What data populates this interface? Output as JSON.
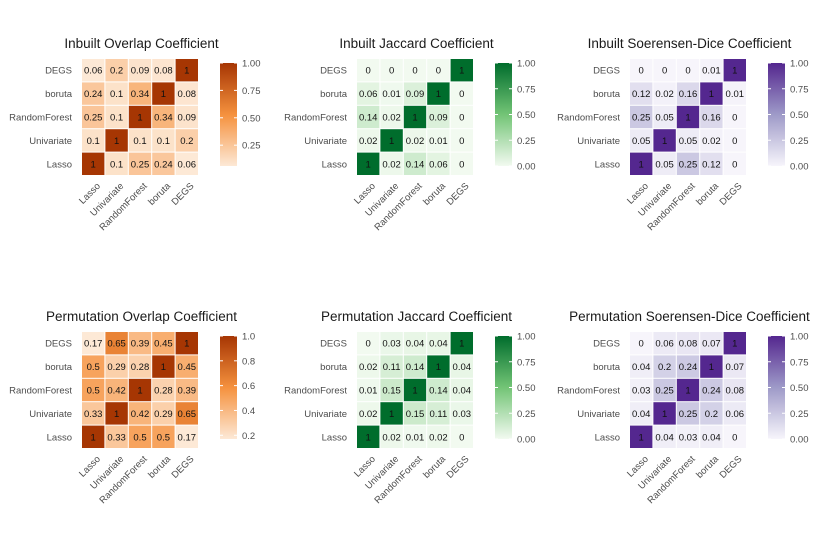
{
  "chart_data": [
    {
      "type": "heatmap",
      "title": "Inbuilt Overlap Coefficient",
      "x_categories": [
        "Lasso",
        "Univariate",
        "RandomForest",
        "boruta",
        "DEGS"
      ],
      "y_categories": [
        "DEGS",
        "boruta",
        "RandomForest",
        "Univariate",
        "Lasso"
      ],
      "values": [
        [
          "0.06",
          "0.2",
          "0.09",
          "0.08",
          "1"
        ],
        [
          "0.24",
          "0.1",
          "0.34",
          "1",
          "0.08"
        ],
        [
          "0.25",
          "0.1",
          "1",
          "0.34",
          "0.09"
        ],
        [
          "0.1",
          "1",
          "0.1",
          "0.1",
          "0.2"
        ],
        [
          "1",
          "0.1",
          "0.25",
          "0.24",
          "0.06"
        ]
      ],
      "legend": {
        "ticks": [
          "1.00",
          "0.75",
          "0.50",
          "0.25"
        ],
        "tick_values": [
          1.0,
          0.75,
          0.5,
          0.25
        ],
        "min": 0.06,
        "max": 1.0
      },
      "colors": {
        "low": "#fde9d6",
        "mid": "#f5913e",
        "high": "#a63603"
      }
    },
    {
      "type": "heatmap",
      "title": "Inbuilt Jaccard Coefficient",
      "x_categories": [
        "Lasso",
        "Univariate",
        "RandomForest",
        "boruta",
        "DEGS"
      ],
      "y_categories": [
        "DEGS",
        "boruta",
        "RandomForest",
        "Univariate",
        "Lasso"
      ],
      "values": [
        [
          "0",
          "0",
          "0",
          "0",
          "1"
        ],
        [
          "0.06",
          "0.01",
          "0.09",
          "1",
          "0"
        ],
        [
          "0.14",
          "0.02",
          "1",
          "0.09",
          "0"
        ],
        [
          "0.02",
          "1",
          "0.02",
          "0.01",
          "0"
        ],
        [
          "1",
          "0.02",
          "0.14",
          "0.06",
          "0"
        ]
      ],
      "legend": {
        "ticks": [
          "1.00",
          "0.75",
          "0.50",
          "0.25",
          "0.00"
        ],
        "tick_values": [
          1.0,
          0.75,
          0.5,
          0.25,
          0.0
        ],
        "min": 0.0,
        "max": 1.0
      },
      "colors": {
        "low": "#f2faf0",
        "mid": "#73c476",
        "high": "#006d2c"
      }
    },
    {
      "type": "heatmap",
      "title": "Inbuilt Soerensen-Dice Coefficient",
      "x_categories": [
        "Lasso",
        "Univariate",
        "RandomForest",
        "boruta",
        "DEGS"
      ],
      "y_categories": [
        "DEGS",
        "boruta",
        "RandomForest",
        "Univariate",
        "Lasso"
      ],
      "values": [
        [
          "0",
          "0",
          "0",
          "0.01",
          "1"
        ],
        [
          "0.12",
          "0.02",
          "0.16",
          "1",
          "0.01"
        ],
        [
          "0.25",
          "0.05",
          "1",
          "0.16",
          "0"
        ],
        [
          "0.05",
          "1",
          "0.05",
          "0.02",
          "0"
        ],
        [
          "1",
          "0.05",
          "0.25",
          "0.12",
          "0"
        ]
      ],
      "legend": {
        "ticks": [
          "1.00",
          "0.75",
          "0.50",
          "0.25",
          "0.00"
        ],
        "tick_values": [
          1.0,
          0.75,
          0.5,
          0.25,
          0.0
        ],
        "min": 0.0,
        "max": 1.0
      },
      "colors": {
        "low": "#f7f5fb",
        "mid": "#9e9ac8",
        "high": "#54278f"
      }
    },
    {
      "type": "heatmap",
      "title": "Permutation Overlap Coefficient",
      "x_categories": [
        "Lasso",
        "Univariate",
        "RandomForest",
        "boruta",
        "DEGS"
      ],
      "y_categories": [
        "DEGS",
        "boruta",
        "RandomForest",
        "Univariate",
        "Lasso"
      ],
      "values": [
        [
          "0.17",
          "0.65",
          "0.39",
          "0.45",
          "1"
        ],
        [
          "0.5",
          "0.29",
          "0.28",
          "1",
          "0.45"
        ],
        [
          "0.5",
          "0.42",
          "1",
          "0.28",
          "0.39"
        ],
        [
          "0.33",
          "1",
          "0.42",
          "0.29",
          "0.65"
        ],
        [
          "1",
          "0.33",
          "0.5",
          "0.5",
          "0.17"
        ]
      ],
      "legend": {
        "ticks": [
          "1.0",
          "0.8",
          "0.6",
          "0.4",
          "0.2"
        ],
        "tick_values": [
          1.0,
          0.8,
          0.6,
          0.4,
          0.2
        ],
        "min": 0.17,
        "max": 1.0
      },
      "colors": {
        "low": "#fde9d6",
        "mid": "#f5913e",
        "high": "#a63603"
      }
    },
    {
      "type": "heatmap",
      "title": "Permutation Jaccard Coefficient",
      "x_categories": [
        "Lasso",
        "Univariate",
        "RandomForest",
        "boruta",
        "DEGS"
      ],
      "y_categories": [
        "DEGS",
        "boruta",
        "RandomForest",
        "Univariate",
        "Lasso"
      ],
      "values": [
        [
          "0",
          "0.03",
          "0.04",
          "0.04",
          "1"
        ],
        [
          "0.02",
          "0.11",
          "0.14",
          "1",
          "0.04"
        ],
        [
          "0.01",
          "0.15",
          "1",
          "0.14",
          "0.04"
        ],
        [
          "0.02",
          "1",
          "0.15",
          "0.11",
          "0.03"
        ],
        [
          "1",
          "0.02",
          "0.01",
          "0.02",
          "0"
        ]
      ],
      "legend": {
        "ticks": [
          "1.00",
          "0.75",
          "0.50",
          "0.25",
          "0.00"
        ],
        "tick_values": [
          1.0,
          0.75,
          0.5,
          0.25,
          0.0
        ],
        "min": 0.0,
        "max": 1.0
      },
      "colors": {
        "low": "#f2faf0",
        "mid": "#73c476",
        "high": "#006d2c"
      }
    },
    {
      "type": "heatmap",
      "title": "Permutation Soerensen-Dice Coefficient",
      "x_categories": [
        "Lasso",
        "Univariate",
        "RandomForest",
        "boruta",
        "DEGS"
      ],
      "y_categories": [
        "DEGS",
        "boruta",
        "RandomForest",
        "Univariate",
        "Lasso"
      ],
      "values": [
        [
          "0",
          "0.06",
          "0.08",
          "0.07",
          "1"
        ],
        [
          "0.04",
          "0.2",
          "0.24",
          "1",
          "0.07"
        ],
        [
          "0.03",
          "0.25",
          "1",
          "0.24",
          "0.08"
        ],
        [
          "0.04",
          "1",
          "0.25",
          "0.2",
          "0.06"
        ],
        [
          "1",
          "0.04",
          "0.03",
          "0.04",
          "0"
        ]
      ],
      "legend": {
        "ticks": [
          "1.00",
          "0.75",
          "0.50",
          "0.25",
          "0.00"
        ],
        "tick_values": [
          1.0,
          0.75,
          0.5,
          0.25,
          0.0
        ],
        "min": 0.0,
        "max": 1.0
      },
      "colors": {
        "low": "#f7f5fb",
        "mid": "#9e9ac8",
        "high": "#54278f"
      }
    }
  ]
}
